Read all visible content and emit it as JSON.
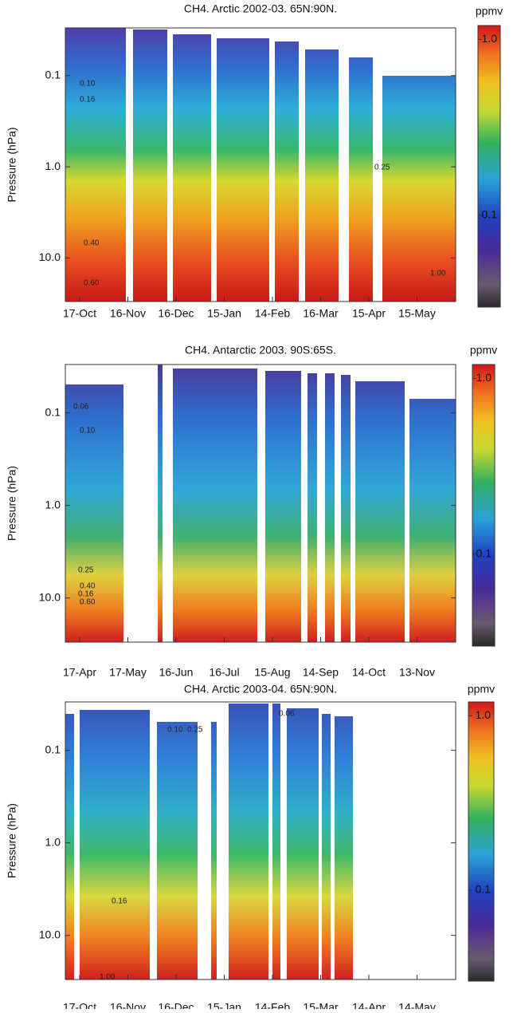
{
  "chart_data": [
    {
      "type": "contour",
      "title": "CH4. Arctic 2002-03. 65N:90N.",
      "y_label": "Pressure (hPa)",
      "categories": [
        "17-Oct",
        "16-Nov",
        "16-Dec",
        "15-Jan",
        "14-Feb",
        "16-Mar",
        "15-Apr",
        "15-May"
      ],
      "log_y": true,
      "y_inverted": true,
      "ylim": [
        0.03,
        30
      ],
      "yticks": [
        0.1,
        {
          "value": 1,
          "label": "1.0"
        },
        {
          "value": 10,
          "label": "10.0"
        }
      ],
      "contour_levels": [
        {
          "value": 0.1,
          "label": "0.10"
        },
        0.16,
        0.25,
        {
          "value": 0.4,
          "label": "0.40"
        },
        {
          "value": 0.6,
          "label": "0.60"
        },
        {
          "value": 1,
          "label": "1.00"
        }
      ],
      "colorbar": {
        "label": "ppmv",
        "log": true,
        "clim": [
          0.03,
          1.2
        ],
        "ticks": [
          0.1,
          {
            "value": 1,
            "label": "1.0"
          }
        ]
      }
    },
    {
      "type": "contour",
      "title": "CH4. Antarctic 2003. 90S:65S.",
      "y_label": "Pressure (hPa)",
      "categories": [
        "17-Apr",
        "17-May",
        "16-Jun",
        "16-Jul",
        "15-Aug",
        "14-Sep",
        "14-Oct",
        "13-Nov"
      ],
      "log_y": true,
      "y_inverted": true,
      "ylim": [
        0.03,
        30
      ],
      "yticks": [
        0.1,
        {
          "value": 1,
          "label": "1.0"
        },
        {
          "value": 10,
          "label": "10.0"
        }
      ],
      "contour_levels": [
        0.06,
        {
          "value": 0.1,
          "label": "0.10"
        },
        0.16,
        0.25,
        {
          "value": 0.4,
          "label": "0.40"
        },
        {
          "value": 0.6,
          "label": "0.60"
        }
      ],
      "colorbar": {
        "label": "ppmv",
        "log": true,
        "clim": [
          0.03,
          1.2
        ],
        "ticks": [
          0.1,
          {
            "value": 1,
            "label": "1.0"
          }
        ]
      }
    },
    {
      "type": "contour",
      "title": "CH4. Arctic 2003-04. 65N:90N.",
      "y_label": "Pressure (hPa)",
      "categories": [
        "17-Oct",
        "16-Nov",
        "16-Dec",
        "15-Jan",
        "14-Feb",
        "15-Mar",
        "14-Apr",
        "14-May"
      ],
      "log_y": true,
      "y_inverted": true,
      "ylim": [
        0.03,
        30
      ],
      "yticks": [
        0.1,
        {
          "value": 1,
          "label": "1.0"
        },
        {
          "value": 10,
          "label": "10.0"
        }
      ],
      "contour_levels": [
        0.06,
        {
          "value": 0.1,
          "label": "0.10"
        },
        0.16,
        0.25,
        {
          "value": 1,
          "label": "1.00"
        }
      ],
      "colorbar": {
        "label": "ppmv",
        "log": true,
        "clim": [
          0.03,
          1.2
        ],
        "ticks": [
          0.1,
          {
            "value": 1,
            "label": "1.0"
          }
        ]
      }
    }
  ]
}
